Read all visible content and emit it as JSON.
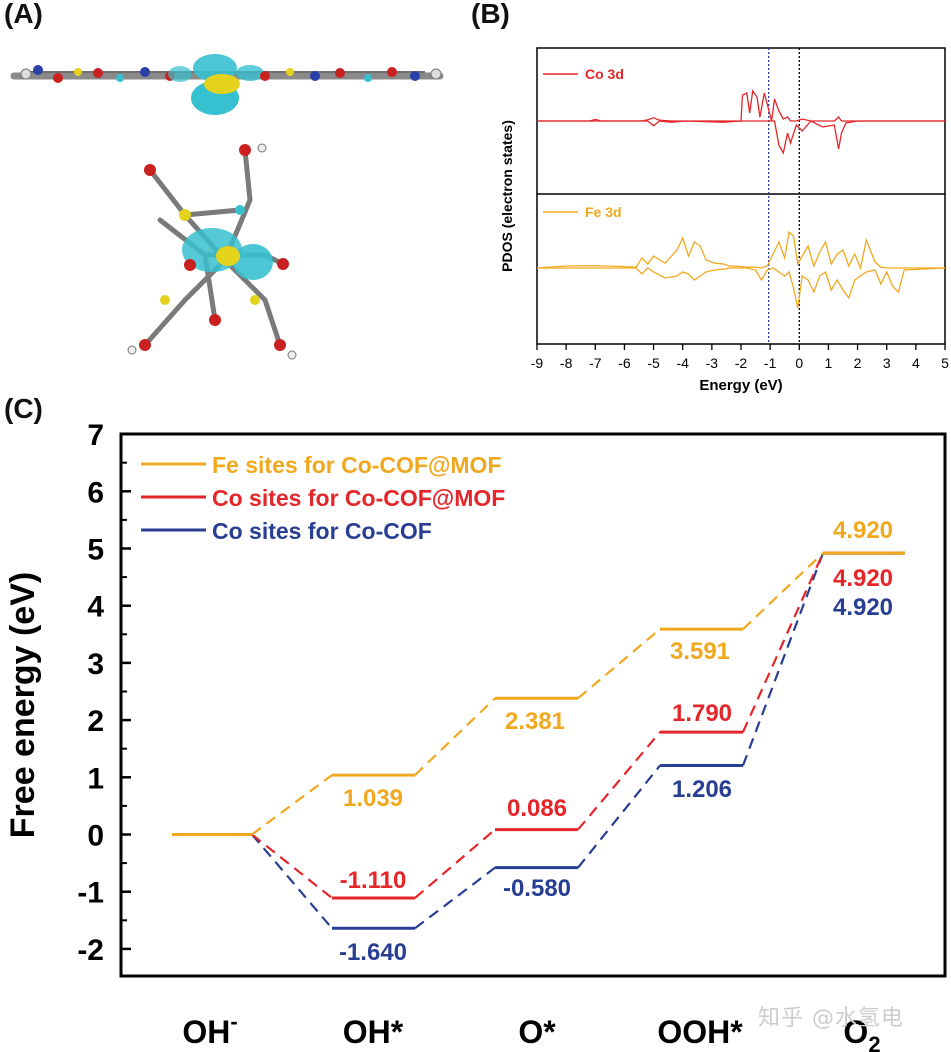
{
  "panels": {
    "a": "(A)",
    "b": "(B)",
    "c": "(C)"
  },
  "colors": {
    "fe": "#f0a91f",
    "co": "#e4262a",
    "cocof": "#283e93",
    "ink": "#000000"
  },
  "molecule_icon": "molecular-structure-isosurface",
  "watermark": "知乎 @水氢电",
  "chart_data": [
    {
      "type": "line",
      "title": "",
      "xlabel": "Energy (eV)",
      "ylabel": "PDOS (electron states)",
      "xlim": [
        -9,
        5
      ],
      "xticks": [
        -9,
        -8,
        -7,
        -6,
        -5,
        -4,
        -3,
        -2,
        -1,
        0,
        1,
        2,
        3,
        4,
        5
      ],
      "legend_position": "top-left",
      "reference_lines": [
        {
          "x": -1.05,
          "color": "#283e93"
        },
        {
          "x": 0,
          "color": "#000000"
        }
      ],
      "series": [
        {
          "name": "Co 3d",
          "color": "#e4262a",
          "x": [
            -9,
            -7.2,
            -7,
            -6.8,
            -5.4,
            -5.2,
            -5.0,
            -4.8,
            -4.4,
            -3.9,
            -2.6,
            -2.0,
            -1.95,
            -1.8,
            -1.7,
            -1.6,
            -1.45,
            -1.35,
            -1.2,
            -0.95,
            -0.85,
            -0.7,
            -0.55,
            -0.4,
            -0.3,
            -0.1,
            0.1,
            0.4,
            0.8,
            1.2,
            1.35,
            1.45,
            1.6,
            2.0,
            5
          ],
          "up": [
            0,
            0,
            0.04,
            0,
            0,
            0.03,
            0.08,
            0.02,
            0,
            0,
            0,
            0,
            0.65,
            0.7,
            0.2,
            0.75,
            0.6,
            0.1,
            0.7,
            0,
            0.55,
            0.25,
            0.05,
            0.1,
            0,
            0,
            0.05,
            0,
            0,
            0,
            0.1,
            0,
            0,
            0,
            0
          ],
          "down": [
            0,
            0,
            0,
            0,
            0,
            0,
            0.12,
            0,
            0.03,
            0,
            0.03,
            0,
            0,
            0,
            0,
            0,
            0,
            0,
            0,
            0,
            0,
            0.6,
            0.8,
            0.3,
            0.55,
            0.1,
            0.25,
            0,
            0.15,
            0.1,
            0.7,
            0.3,
            0.05,
            0,
            0
          ]
        },
        {
          "name": "Fe 3d",
          "color": "#f0a91f",
          "x": [
            -9,
            -8.0,
            -7.0,
            -6.2,
            -5.6,
            -5.4,
            -5.2,
            -5.0,
            -4.6,
            -4.2,
            -4.0,
            -3.8,
            -3.6,
            -3.4,
            -3.2,
            -2.9,
            -2.6,
            -2.4,
            -2.1,
            -1.8,
            -1.5,
            -1.3,
            -1.1,
            -0.9,
            -0.7,
            -0.5,
            -0.35,
            -0.2,
            -0.05,
            0.1,
            0.3,
            0.5,
            0.7,
            0.9,
            1.1,
            1.3,
            1.5,
            1.7,
            1.9,
            2.1,
            2.3,
            2.6,
            2.8,
            3.0,
            3.2,
            3.4,
            3.6,
            5
          ],
          "up": [
            0,
            0.05,
            0.06,
            0.04,
            0.02,
            0.25,
            0.1,
            0.3,
            0.12,
            0.45,
            0.75,
            0.3,
            0.65,
            0.55,
            0.2,
            0.12,
            0.1,
            0.05,
            0.04,
            0.02,
            0.02,
            0.0,
            0.05,
            0.35,
            0.65,
            0.25,
            0.9,
            0.8,
            0.1,
            0.3,
            0.55,
            0.05,
            0.4,
            0.65,
            0.1,
            0.35,
            0.45,
            0.05,
            0.35,
            0.0,
            0.7,
            0.15,
            0.02,
            0,
            0,
            0,
            0,
            0
          ],
          "down": [
            0,
            0,
            0,
            0,
            0,
            0.15,
            0,
            0.1,
            0.25,
            0.2,
            0.1,
            0.15,
            0.3,
            0.2,
            0.1,
            0.05,
            0.03,
            0,
            0,
            0,
            0.05,
            0.3,
            0.05,
            0,
            0.1,
            0.2,
            0.1,
            0.5,
            1.0,
            0.2,
            0.3,
            0.6,
            0.2,
            0.1,
            0.55,
            0.3,
            0.55,
            0.75,
            0.3,
            0.2,
            0.1,
            0.05,
            0.4,
            0.1,
            0.45,
            0.6,
            0.05,
            0
          ]
        }
      ]
    },
    {
      "type": "line",
      "title": "",
      "xlabel": "",
      "ylabel": "Free energy (eV)",
      "ylim": [
        -2.5,
        7
      ],
      "yticks": [
        -2,
        -1,
        0,
        1,
        2,
        3,
        4,
        5,
        6,
        7
      ],
      "categories": [
        "OH-",
        "OH*",
        "O*",
        "OOH*",
        "O2"
      ],
      "legend_position": "top-left",
      "series": [
        {
          "name": "Fe sites for Co-COF@MOF",
          "color": "#f0a91f",
          "values": [
            0,
            1.039,
            2.381,
            3.591,
            4.92
          ],
          "labels": [
            "",
            "1.039",
            "2.381",
            "3.591",
            "4.920"
          ]
        },
        {
          "name": "Co sites for Co-COF@MOF",
          "color": "#e4262a",
          "values": [
            0,
            -1.11,
            0.086,
            1.79,
            4.92
          ],
          "labels": [
            "",
            "-1.110",
            "0.086",
            "1.790",
            "4.920"
          ]
        },
        {
          "name": "Co sites for Co-COF",
          "color": "#283e93",
          "values": [
            0,
            -1.64,
            -0.58,
            1.206,
            4.92
          ],
          "labels": [
            "",
            "-1.640",
            "-0.580",
            "1.206",
            "4.920"
          ]
        }
      ]
    }
  ]
}
